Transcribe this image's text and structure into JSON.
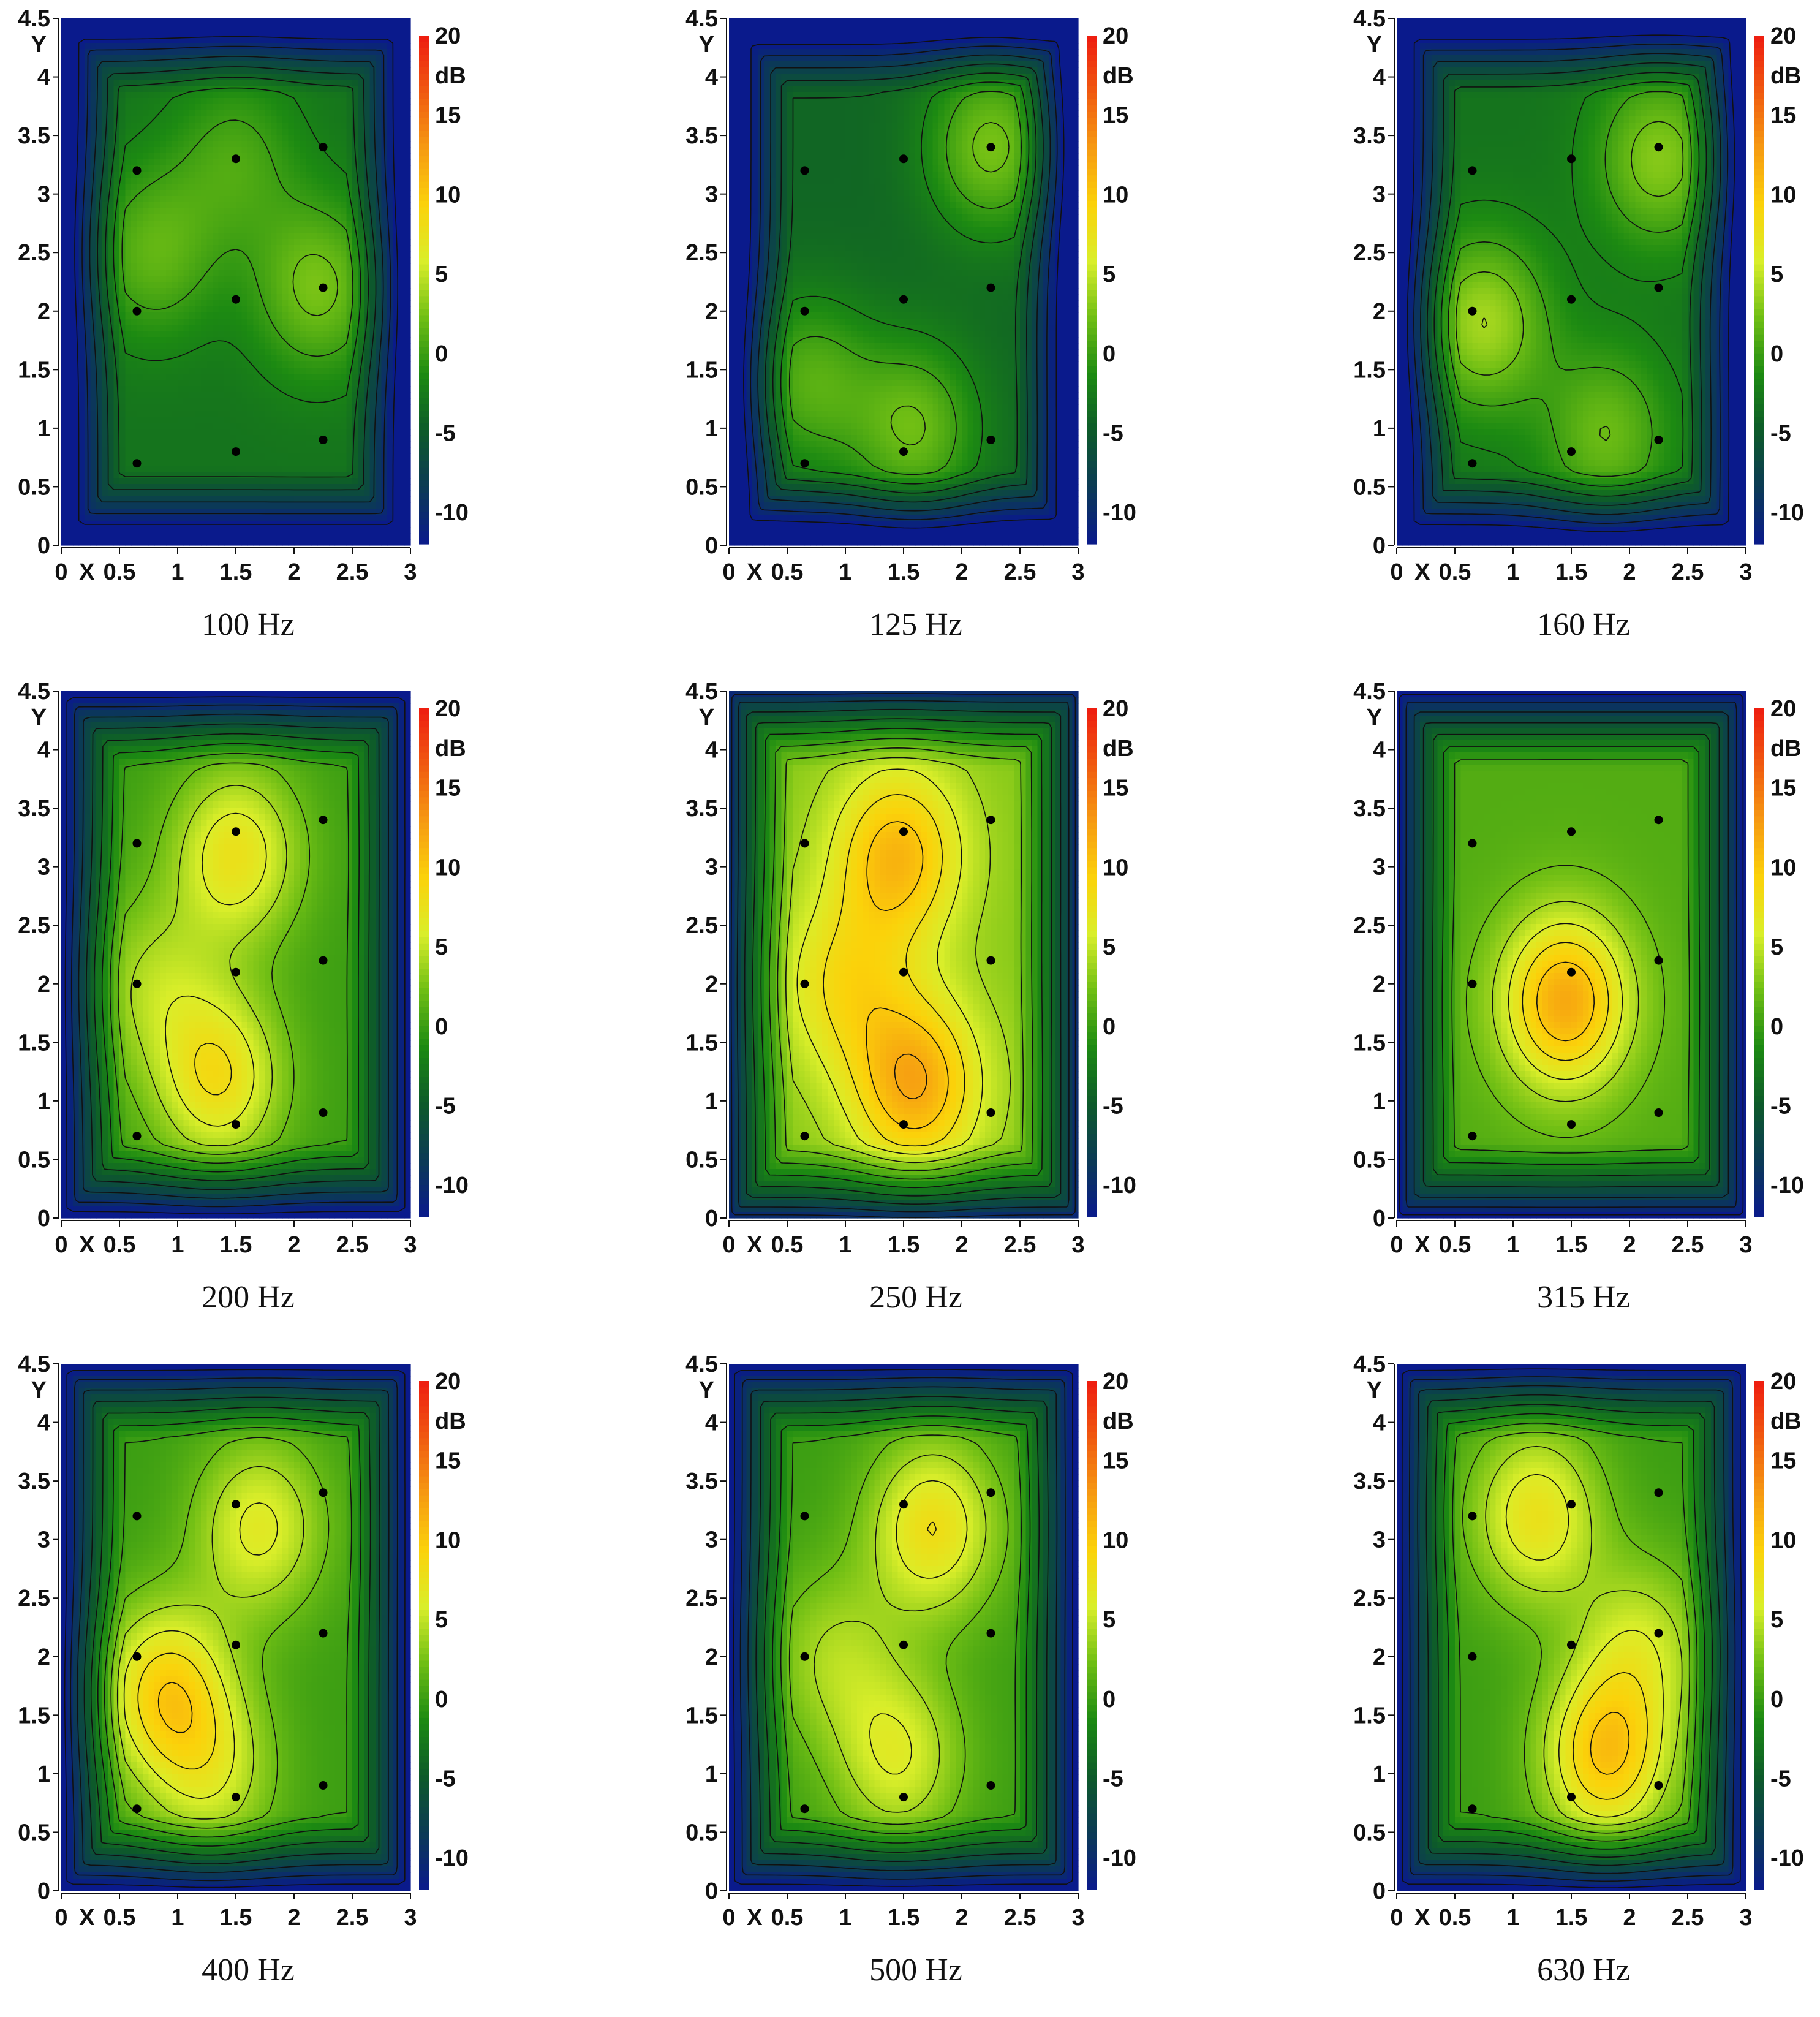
{
  "chart_data": [
    {
      "type": "heatmap",
      "title": "100 Hz",
      "xlabel": "X",
      "ylabel": "Y",
      "colorbar_label": "dB",
      "xlim": [
        0,
        3
      ],
      "ylim": [
        0,
        4.5
      ],
      "clim": [
        -12,
        20
      ],
      "x_ticks": [
        "0",
        "0.5",
        "1",
        "1.5",
        "2",
        "2.5",
        "3"
      ],
      "y_ticks": [
        "0",
        "0.5",
        "1",
        "1.5",
        "2",
        "2.5",
        "3",
        "3.5",
        "4",
        "4.5"
      ],
      "colorbar_ticks": [
        "20",
        "15",
        "10",
        "5",
        "0",
        "-5",
        "-10"
      ],
      "points": [
        [
          0.65,
          3.2
        ],
        [
          1.5,
          3.3
        ],
        [
          2.25,
          3.4
        ],
        [
          0.65,
          2.0
        ],
        [
          1.5,
          2.1
        ],
        [
          2.25,
          2.2
        ],
        [
          0.65,
          0.7
        ],
        [
          1.5,
          0.8
        ],
        [
          2.25,
          0.9
        ]
      ],
      "base_level": -3,
      "peaks": [
        {
          "x": 2.2,
          "y": 2.2,
          "value": 2.5
        },
        {
          "x": 0.8,
          "y": 2.5,
          "value": 1.5
        },
        {
          "x": 1.5,
          "y": 3.3,
          "value": 0.5
        }
      ]
    },
    {
      "type": "heatmap",
      "title": "125 Hz",
      "xlabel": "X",
      "ylabel": "Y",
      "colorbar_label": "dB",
      "xlim": [
        0,
        3
      ],
      "ylim": [
        0,
        4.5
      ],
      "clim": [
        -12,
        20
      ],
      "x_ticks": [
        "0",
        "0.5",
        "1",
        "1.5",
        "2",
        "2.5",
        "3"
      ],
      "y_ticks": [
        "0",
        "0.5",
        "1",
        "1.5",
        "2",
        "2.5",
        "3",
        "3.5",
        "4",
        "4.5"
      ],
      "colorbar_ticks": [
        "20",
        "15",
        "10",
        "5",
        "0",
        "-5",
        "-10"
      ],
      "points": [
        [
          0.65,
          3.2
        ],
        [
          1.5,
          3.3
        ],
        [
          2.25,
          3.4
        ],
        [
          0.65,
          2.0
        ],
        [
          1.5,
          2.1
        ],
        [
          2.25,
          2.2
        ],
        [
          0.65,
          0.7
        ],
        [
          1.5,
          0.8
        ],
        [
          2.25,
          0.9
        ]
      ],
      "base_level": -4,
      "peaks": [
        {
          "x": 2.25,
          "y": 3.4,
          "value": 2.5
        },
        {
          "x": 1.6,
          "y": 1.0,
          "value": 2.0
        },
        {
          "x": 0.7,
          "y": 1.4,
          "value": 1.0
        }
      ]
    },
    {
      "type": "heatmap",
      "title": "160 Hz",
      "xlabel": "X",
      "ylabel": "Y",
      "colorbar_label": "dB",
      "xlim": [
        0,
        3
      ],
      "ylim": [
        0,
        4.5
      ],
      "clim": [
        -12,
        20
      ],
      "x_ticks": [
        "0",
        "0.5",
        "1",
        "1.5",
        "2",
        "2.5",
        "3"
      ],
      "y_ticks": [
        "0",
        "0.5",
        "1",
        "1.5",
        "2",
        "2.5",
        "3",
        "3.5",
        "4",
        "4.5"
      ],
      "colorbar_ticks": [
        "20",
        "15",
        "10",
        "5",
        "0",
        "-5",
        "-10"
      ],
      "points": [
        [
          0.65,
          3.2
        ],
        [
          1.5,
          3.3
        ],
        [
          2.25,
          3.4
        ],
        [
          0.65,
          2.0
        ],
        [
          1.5,
          2.1
        ],
        [
          2.25,
          2.2
        ],
        [
          0.65,
          0.7
        ],
        [
          1.5,
          0.8
        ],
        [
          2.25,
          0.9
        ]
      ],
      "base_level": -3,
      "peaks": [
        {
          "x": 0.75,
          "y": 1.9,
          "value": 4.0
        },
        {
          "x": 2.25,
          "y": 3.3,
          "value": 3.0
        },
        {
          "x": 1.8,
          "y": 0.95,
          "value": 2.0
        }
      ]
    },
    {
      "type": "heatmap",
      "title": "200 Hz",
      "xlabel": "X",
      "ylabel": "Y",
      "colorbar_label": "dB",
      "xlim": [
        0,
        3
      ],
      "ylim": [
        0,
        4.5
      ],
      "clim": [
        -12,
        20
      ],
      "x_ticks": [
        "0",
        "0.5",
        "1",
        "1.5",
        "2",
        "2.5",
        "3"
      ],
      "y_ticks": [
        "0",
        "0.5",
        "1",
        "1.5",
        "2",
        "2.5",
        "3",
        "3.5",
        "4",
        "4.5"
      ],
      "colorbar_ticks": [
        "20",
        "15",
        "10",
        "5",
        "0",
        "-5",
        "-10"
      ],
      "points": [
        [
          0.65,
          3.2
        ],
        [
          1.5,
          3.3
        ],
        [
          2.25,
          3.4
        ],
        [
          0.65,
          2.0
        ],
        [
          1.5,
          2.1
        ],
        [
          2.25,
          2.2
        ],
        [
          0.65,
          0.7
        ],
        [
          1.5,
          0.8
        ],
        [
          2.25,
          0.9
        ]
      ],
      "base_level": 0,
      "peaks": [
        {
          "x": 1.35,
          "y": 1.2,
          "value": 8.0
        },
        {
          "x": 1.5,
          "y": 3.1,
          "value": 7.5
        },
        {
          "x": 0.8,
          "y": 2.0,
          "value": 4.0
        }
      ]
    },
    {
      "type": "heatmap",
      "title": "250 Hz",
      "xlabel": "X",
      "ylabel": "Y",
      "colorbar_label": "dB",
      "xlim": [
        0,
        3
      ],
      "ylim": [
        0,
        4.5
      ],
      "clim": [
        -12,
        20
      ],
      "x_ticks": [
        "0",
        "0.5",
        "1",
        "1.5",
        "2",
        "2.5",
        "3"
      ],
      "y_ticks": [
        "0",
        "0.5",
        "1",
        "1.5",
        "2",
        "2.5",
        "3",
        "3.5",
        "4",
        "4.5"
      ],
      "colorbar_ticks": [
        "20",
        "15",
        "10",
        "5",
        "0",
        "-5",
        "-10"
      ],
      "points": [
        [
          0.65,
          3.2
        ],
        [
          1.5,
          3.3
        ],
        [
          2.25,
          3.4
        ],
        [
          0.65,
          2.0
        ],
        [
          1.5,
          2.1
        ],
        [
          2.25,
          2.2
        ],
        [
          0.65,
          0.7
        ],
        [
          1.5,
          0.8
        ],
        [
          2.25,
          0.9
        ]
      ],
      "base_level": 3,
      "peaks": [
        {
          "x": 1.6,
          "y": 1.15,
          "value": 12.0
        },
        {
          "x": 1.45,
          "y": 3.1,
          "value": 11.0
        },
        {
          "x": 1.0,
          "y": 2.0,
          "value": 8.0
        }
      ]
    },
    {
      "type": "heatmap",
      "title": "315 Hz",
      "xlabel": "X",
      "ylabel": "Y",
      "colorbar_label": "dB",
      "xlim": [
        0,
        3
      ],
      "ylim": [
        0,
        4.5
      ],
      "clim": [
        -12,
        20
      ],
      "x_ticks": [
        "0",
        "0.5",
        "1",
        "1.5",
        "2",
        "2.5",
        "3"
      ],
      "y_ticks": [
        "0",
        "0.5",
        "1",
        "1.5",
        "2",
        "2.5",
        "3",
        "3.5",
        "4",
        "4.5"
      ],
      "colorbar_ticks": [
        "20",
        "15",
        "10",
        "5",
        "0",
        "-5",
        "-10"
      ],
      "points": [
        [
          0.65,
          3.2
        ],
        [
          1.5,
          3.3
        ],
        [
          2.25,
          3.4
        ],
        [
          0.65,
          2.0
        ],
        [
          1.5,
          2.1
        ],
        [
          2.25,
          2.2
        ],
        [
          0.65,
          0.7
        ],
        [
          1.5,
          0.8
        ],
        [
          2.25,
          0.9
        ]
      ],
      "base_level": 1,
      "peaks": [
        {
          "x": 1.45,
          "y": 1.85,
          "value": 12.0
        }
      ]
    },
    {
      "type": "heatmap",
      "title": "400 Hz",
      "xlabel": "X",
      "ylabel": "Y",
      "colorbar_label": "dB",
      "xlim": [
        0,
        3
      ],
      "ylim": [
        0,
        4.5
      ],
      "clim": [
        -12,
        20
      ],
      "x_ticks": [
        "0",
        "0.5",
        "1",
        "1.5",
        "2",
        "2.5",
        "3"
      ],
      "y_ticks": [
        "0",
        "0.5",
        "1",
        "1.5",
        "2",
        "2.5",
        "3",
        "3.5",
        "4",
        "4.5"
      ],
      "colorbar_ticks": [
        "20",
        "15",
        "10",
        "5",
        "0",
        "-5",
        "-10"
      ],
      "points": [
        [
          0.65,
          3.2
        ],
        [
          1.5,
          3.3
        ],
        [
          2.25,
          3.4
        ],
        [
          0.65,
          2.0
        ],
        [
          1.5,
          2.1
        ],
        [
          2.25,
          2.2
        ],
        [
          0.65,
          0.7
        ],
        [
          1.5,
          0.8
        ],
        [
          2.25,
          0.9
        ]
      ],
      "base_level": 0,
      "peaks": [
        {
          "x": 0.9,
          "y": 1.7,
          "value": 9.0
        },
        {
          "x": 1.7,
          "y": 3.1,
          "value": 6.5
        },
        {
          "x": 1.3,
          "y": 1.0,
          "value": 5.0
        }
      ]
    },
    {
      "type": "heatmap",
      "title": "500 Hz",
      "xlabel": "X",
      "ylabel": "Y",
      "colorbar_label": "dB",
      "xlim": [
        0,
        3
      ],
      "ylim": [
        0,
        4.5
      ],
      "clim": [
        -12,
        20
      ],
      "x_ticks": [
        "0",
        "0.5",
        "1",
        "1.5",
        "2",
        "2.5",
        "3"
      ],
      "y_ticks": [
        "0",
        "0.5",
        "1",
        "1.5",
        "2",
        "2.5",
        "3",
        "3.5",
        "4",
        "4.5"
      ],
      "colorbar_ticks": [
        "20",
        "15",
        "10",
        "5",
        "0",
        "-5",
        "-10"
      ],
      "points": [
        [
          0.65,
          3.2
        ],
        [
          1.5,
          3.3
        ],
        [
          2.25,
          3.4
        ],
        [
          0.65,
          2.0
        ],
        [
          1.5,
          2.1
        ],
        [
          2.25,
          2.2
        ],
        [
          0.65,
          0.7
        ],
        [
          1.5,
          0.8
        ],
        [
          2.25,
          0.9
        ]
      ],
      "base_level": 0,
      "peaks": [
        {
          "x": 1.75,
          "y": 3.1,
          "value": 8.0
        },
        {
          "x": 1.45,
          "y": 1.15,
          "value": 6.0
        },
        {
          "x": 0.9,
          "y": 2.0,
          "value": 4.0
        }
      ]
    },
    {
      "type": "heatmap",
      "title": "630 Hz",
      "xlabel": "X",
      "ylabel": "Y",
      "colorbar_label": "dB",
      "xlim": [
        0,
        3
      ],
      "ylim": [
        0,
        4.5
      ],
      "clim": [
        -12,
        20
      ],
      "x_ticks": [
        "0",
        "0.5",
        "1",
        "1.5",
        "2",
        "2.5",
        "3"
      ],
      "y_ticks": [
        "0",
        "0.5",
        "1",
        "1.5",
        "2",
        "2.5",
        "3",
        "3.5",
        "4",
        "4.5"
      ],
      "colorbar_ticks": [
        "20",
        "15",
        "10",
        "5",
        "0",
        "-5",
        "-10"
      ],
      "points": [
        [
          0.65,
          3.2
        ],
        [
          1.5,
          3.3
        ],
        [
          2.25,
          3.4
        ],
        [
          0.65,
          2.0
        ],
        [
          1.5,
          2.1
        ],
        [
          2.25,
          2.2
        ],
        [
          0.65,
          0.7
        ],
        [
          1.5,
          0.8
        ],
        [
          2.25,
          0.9
        ]
      ],
      "base_level": 0,
      "peaks": [
        {
          "x": 1.8,
          "y": 1.15,
          "value": 10.0
        },
        {
          "x": 1.2,
          "y": 3.2,
          "value": 7.5
        },
        {
          "x": 2.1,
          "y": 2.1,
          "value": 5.0
        }
      ]
    }
  ],
  "colors": {
    "colormap": [
      "#0a1a8c",
      "#0b3a55",
      "#0d5a2a",
      "#1c8a12",
      "#6fbe14",
      "#d9ee2a",
      "#fbd20a",
      "#f69a12",
      "#f05a10",
      "#ee1c10"
    ],
    "contour_line": "#111111",
    "point_marker": "#000000"
  }
}
